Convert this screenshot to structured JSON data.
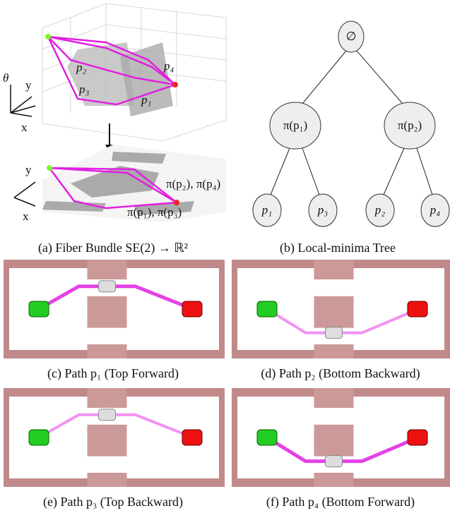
{
  "panel_a": {
    "caption": "(a) Fiber Bundle SE(2) → ℝ²",
    "axes_top": {
      "theta": "θ",
      "y": "y",
      "x": "x"
    },
    "axes_bottom": {
      "y": "y",
      "x": "x"
    },
    "path_labels": {
      "p2": "p₂",
      "p4": "p₄",
      "p3": "p₃",
      "p1": "p₁"
    },
    "projection_labels": {
      "upper": "π(p₂), π(p₄)",
      "lower": "π(p₁), π(p₃)"
    }
  },
  "panel_b": {
    "caption": "(b) Local-minima Tree",
    "nodes": [
      "∅",
      "π(p₁)",
      "π(p₂)",
      "p₁",
      "p₃",
      "p₂",
      "p₄"
    ]
  },
  "panel_c": {
    "caption": "(c) Path p₁ (Top Forward)"
  },
  "panel_d": {
    "caption": "(d) Path p₂ (Bottom Backward)"
  },
  "panel_e": {
    "caption": "(e) Path p₃ (Top Backward)"
  },
  "panel_f": {
    "caption": "(f) Path p₄ (Bottom Forward)"
  }
}
